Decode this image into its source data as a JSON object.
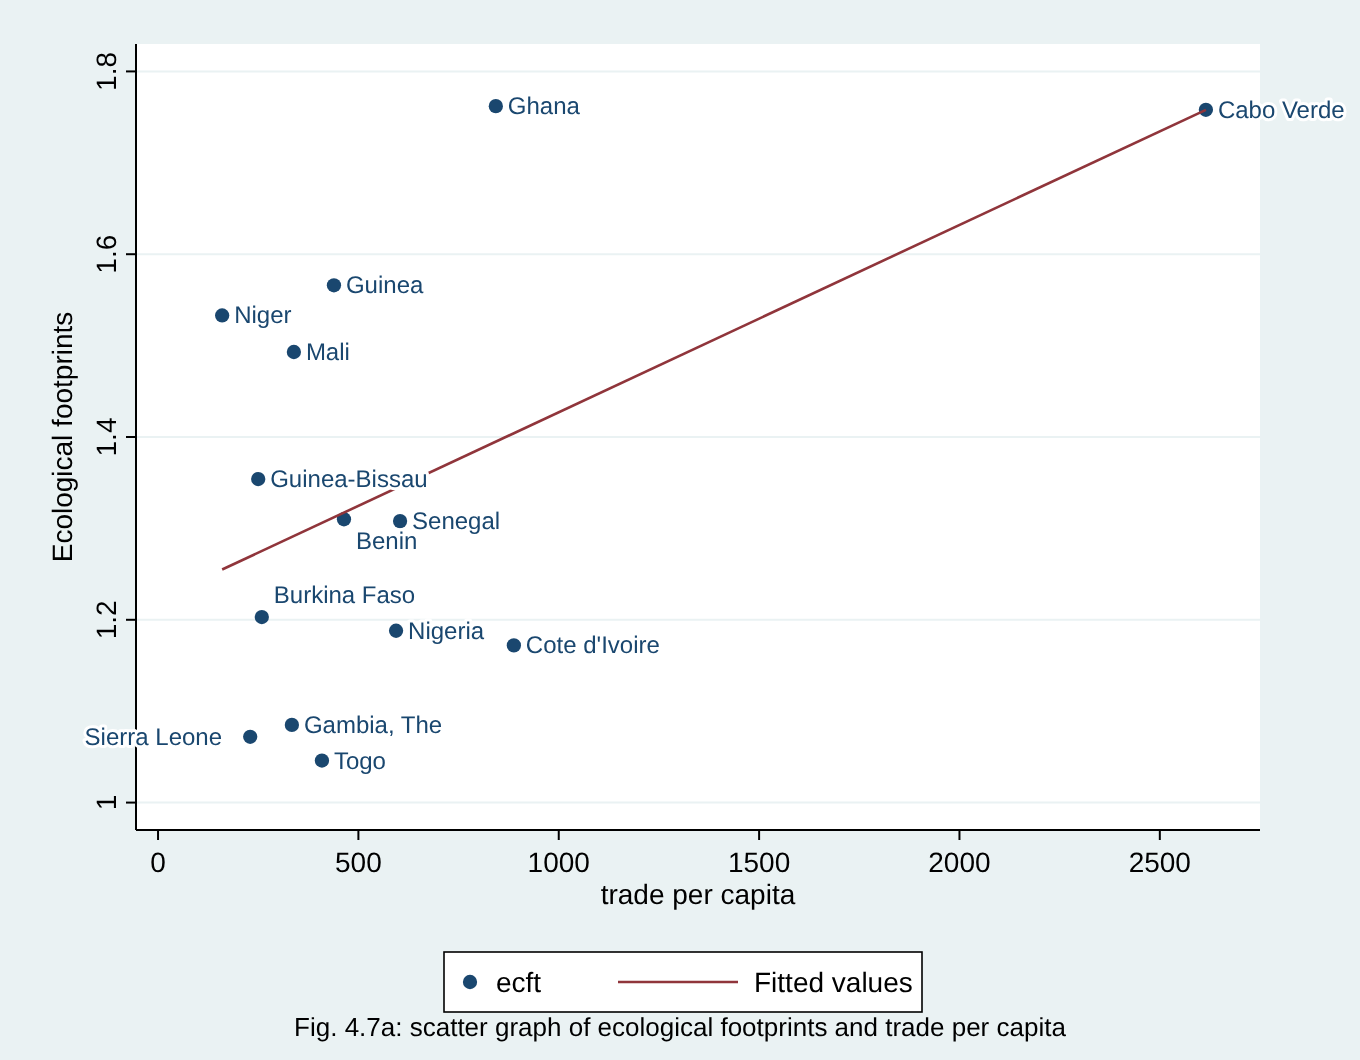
{
  "chart_data": {
    "type": "scatter",
    "xlabel": "trade per capita",
    "ylabel": "Ecological footprints",
    "xlim": [
      -55,
      2750
    ],
    "ylim": [
      0.97,
      1.83
    ],
    "xticks": [
      0,
      500,
      1000,
      1500,
      2000,
      2500
    ],
    "yticks": [
      1,
      1.2,
      1.4,
      1.6,
      1.8
    ],
    "grid": "y",
    "legend": "bottom",
    "series": [
      {
        "name": "ecft",
        "marker": "circle",
        "color": "#1a476f",
        "x": [
          843,
          2615,
          439,
          160,
          339,
          250,
          464,
          604,
          259,
          594,
          888,
          334,
          230,
          409
        ],
        "values": [
          1.762,
          1.758,
          1.566,
          1.533,
          1.493,
          1.354,
          1.31,
          1.308,
          1.203,
          1.188,
          1.172,
          1.085,
          1.072,
          1.046
        ]
      },
      {
        "name": "Fitted values",
        "type": "line",
        "color": "#90353b",
        "x": [
          160,
          2615
        ],
        "values": [
          1.255,
          1.758
        ]
      }
    ],
    "annotations": [
      {
        "text": "Ghana",
        "x": 843,
        "y": 1.762
      },
      {
        "text": "Cabo Verde",
        "x": 2615,
        "y": 1.758
      },
      {
        "text": "Guinea",
        "x": 439,
        "y": 1.566
      },
      {
        "text": "Niger",
        "x": 160,
        "y": 1.533
      },
      {
        "text": "Mali",
        "x": 339,
        "y": 1.493
      },
      {
        "text": "Guinea-Bissau",
        "x": 250,
        "y": 1.354
      },
      {
        "text": "Benin",
        "x": 464,
        "y": 1.31
      },
      {
        "text": "Senegal",
        "x": 604,
        "y": 1.308
      },
      {
        "text": "Burkina Faso",
        "x": 259,
        "y": 1.203
      },
      {
        "text": "Nigeria",
        "x": 594,
        "y": 1.188
      },
      {
        "text": "Cote d'Ivoire",
        "x": 888,
        "y": 1.172
      },
      {
        "text": "Gambia, The",
        "x": 334,
        "y": 1.085
      },
      {
        "text": "Sierra Leone",
        "x": 230,
        "y": 1.072
      },
      {
        "text": "Togo",
        "x": 409,
        "y": 1.046
      },
      "Fig. 4.7a: scatter graph of ecological footprints and trade per capita"
    ]
  }
}
